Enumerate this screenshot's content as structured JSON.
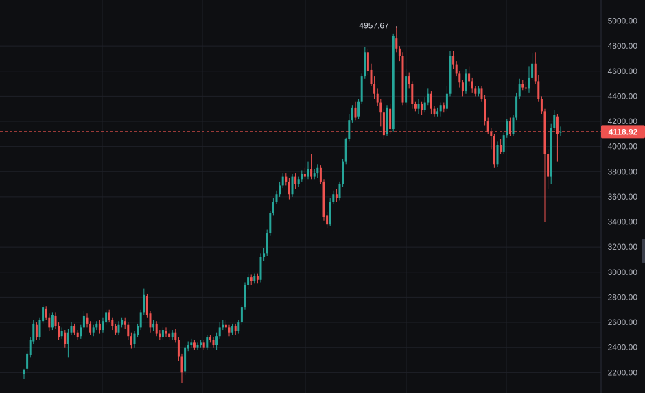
{
  "colors": {
    "background": "#0e0f12",
    "grid": "#1f2128",
    "up": "#26a69a",
    "down": "#ef5350",
    "axis_text": "#b2b5be",
    "price_line": "#ef5350"
  },
  "chart_data": {
    "type": "candlestick",
    "title": "",
    "xlabel": "",
    "ylabel": "",
    "ylim": [
      2140,
      5090
    ],
    "y_ticks": [
      "5000.00",
      "4800.00",
      "4600.00",
      "4400.00",
      "4200.00",
      "4000.00",
      "3800.00",
      "3600.00",
      "3400.00",
      "3200.00",
      "3000.00",
      "2800.00",
      "2600.00",
      "2400.00",
      "2200.00"
    ],
    "grid": true,
    "last_price": "4118.92",
    "high_annotation": "4957.67",
    "high_value": 4957.67,
    "candles": [
      [
        2190,
        2220,
        2150,
        2230
      ],
      [
        2230,
        2350,
        2210,
        2370
      ],
      [
        2340,
        2460,
        2320,
        2480
      ],
      [
        2450,
        2590,
        2430,
        2620
      ],
      [
        2580,
        2480,
        2460,
        2600
      ],
      [
        2480,
        2620,
        2460,
        2640
      ],
      [
        2610,
        2720,
        2590,
        2740
      ],
      [
        2710,
        2640,
        2620,
        2730
      ],
      [
        2640,
        2560,
        2530,
        2670
      ],
      [
        2560,
        2660,
        2540,
        2680
      ],
      [
        2650,
        2570,
        2550,
        2680
      ],
      [
        2570,
        2480,
        2460,
        2600
      ],
      [
        2490,
        2530,
        2470,
        2560
      ],
      [
        2520,
        2430,
        2400,
        2540
      ],
      [
        2430,
        2520,
        2320,
        2550
      ],
      [
        2520,
        2570,
        2500,
        2600
      ],
      [
        2570,
        2520,
        2500,
        2590
      ],
      [
        2520,
        2480,
        2460,
        2540
      ],
      [
        2490,
        2560,
        2470,
        2580
      ],
      [
        2560,
        2650,
        2540,
        2690
      ],
      [
        2640,
        2590,
        2560,
        2670
      ],
      [
        2590,
        2520,
        2500,
        2610
      ],
      [
        2520,
        2560,
        2490,
        2580
      ],
      [
        2560,
        2590,
        2540,
        2610
      ],
      [
        2590,
        2540,
        2510,
        2620
      ],
      [
        2540,
        2610,
        2520,
        2640
      ],
      [
        2600,
        2680,
        2580,
        2700
      ],
      [
        2680,
        2620,
        2600,
        2700
      ],
      [
        2620,
        2570,
        2540,
        2640
      ],
      [
        2570,
        2520,
        2500,
        2590
      ],
      [
        2520,
        2580,
        2500,
        2610
      ],
      [
        2580,
        2620,
        2560,
        2640
      ],
      [
        2610,
        2580,
        2550,
        2640
      ],
      [
        2580,
        2490,
        2460,
        2600
      ],
      [
        2490,
        2420,
        2390,
        2520
      ],
      [
        2430,
        2510,
        2400,
        2530
      ],
      [
        2500,
        2570,
        2480,
        2590
      ],
      [
        2560,
        2680,
        2540,
        2700
      ],
      [
        2680,
        2820,
        2660,
        2870
      ],
      [
        2810,
        2660,
        2640,
        2830
      ],
      [
        2670,
        2560,
        2520,
        2690
      ],
      [
        2560,
        2590,
        2530,
        2620
      ],
      [
        2590,
        2510,
        2490,
        2610
      ],
      [
        2510,
        2480,
        2460,
        2540
      ],
      [
        2480,
        2540,
        2460,
        2560
      ],
      [
        2530,
        2510,
        2480,
        2560
      ],
      [
        2510,
        2480,
        2460,
        2540
      ],
      [
        2480,
        2520,
        2460,
        2540
      ],
      [
        2520,
        2460,
        2440,
        2550
      ],
      [
        2460,
        2330,
        2290,
        2480
      ],
      [
        2330,
        2200,
        2120,
        2350
      ],
      [
        2210,
        2400,
        2180,
        2420
      ],
      [
        2390,
        2420,
        2370,
        2450
      ],
      [
        2420,
        2440,
        2400,
        2470
      ],
      [
        2440,
        2400,
        2380,
        2460
      ],
      [
        2400,
        2420,
        2380,
        2440
      ],
      [
        2420,
        2440,
        2400,
        2460
      ],
      [
        2440,
        2400,
        2380,
        2460
      ],
      [
        2400,
        2480,
        2380,
        2500
      ],
      [
        2480,
        2460,
        2440,
        2500
      ],
      [
        2460,
        2420,
        2400,
        2480
      ],
      [
        2420,
        2490,
        2380,
        2520
      ],
      [
        2490,
        2560,
        2470,
        2600
      ],
      [
        2560,
        2580,
        2540,
        2620
      ],
      [
        2580,
        2560,
        2540,
        2620
      ],
      [
        2560,
        2520,
        2490,
        2580
      ],
      [
        2520,
        2570,
        2500,
        2590
      ],
      [
        2570,
        2530,
        2500,
        2590
      ],
      [
        2530,
        2600,
        2510,
        2620
      ],
      [
        2600,
        2720,
        2580,
        2740
      ],
      [
        2720,
        2900,
        2700,
        2920
      ],
      [
        2900,
        2960,
        2860,
        2990
      ],
      [
        2960,
        2930,
        2900,
        2980
      ],
      [
        2930,
        2970,
        2910,
        2990
      ],
      [
        2970,
        2940,
        2910,
        2990
      ],
      [
        2940,
        3120,
        2920,
        3150
      ],
      [
        3120,
        3150,
        3090,
        3190
      ],
      [
        3150,
        3310,
        3130,
        3340
      ],
      [
        3310,
        3470,
        3290,
        3490
      ],
      [
        3470,
        3560,
        3450,
        3590
      ],
      [
        3560,
        3620,
        3540,
        3650
      ],
      [
        3620,
        3690,
        3600,
        3720
      ],
      [
        3690,
        3760,
        3670,
        3790
      ],
      [
        3760,
        3720,
        3690,
        3790
      ],
      [
        3720,
        3620,
        3580,
        3750
      ],
      [
        3620,
        3760,
        3600,
        3780
      ],
      [
        3760,
        3700,
        3660,
        3790
      ],
      [
        3700,
        3740,
        3680,
        3760
      ],
      [
        3740,
        3780,
        3720,
        3810
      ],
      [
        3780,
        3760,
        3740,
        3830
      ],
      [
        3760,
        3820,
        3740,
        3880
      ],
      [
        3820,
        3760,
        3740,
        3940
      ],
      [
        3760,
        3790,
        3740,
        3820
      ],
      [
        3790,
        3830,
        3750,
        3860
      ],
      [
        3830,
        3720,
        3700,
        3850
      ],
      [
        3720,
        3440,
        3410,
        3740
      ],
      [
        3450,
        3380,
        3350,
        3480
      ],
      [
        3380,
        3560,
        3370,
        3590
      ],
      [
        3560,
        3620,
        3540,
        3650
      ],
      [
        3620,
        3590,
        3560,
        3660
      ],
      [
        3590,
        3700,
        3570,
        3720
      ],
      [
        3700,
        3880,
        3680,
        3900
      ],
      [
        3880,
        4060,
        3860,
        4070
      ],
      [
        4060,
        4210,
        4040,
        4260
      ],
      [
        4210,
        4310,
        4190,
        4330
      ],
      [
        4310,
        4230,
        4210,
        4360
      ],
      [
        4240,
        4360,
        4220,
        4380
      ],
      [
        4360,
        4560,
        4340,
        4580
      ],
      [
        4560,
        4750,
        4540,
        4790
      ],
      [
        4750,
        4600,
        4570,
        4780
      ],
      [
        4610,
        4500,
        4480,
        4660
      ],
      [
        4500,
        4420,
        4380,
        4560
      ],
      [
        4420,
        4350,
        4320,
        4460
      ],
      [
        4350,
        4270,
        4160,
        4380
      ],
      [
        4270,
        4090,
        4060,
        4300
      ],
      [
        4100,
        4310,
        4080,
        4330
      ],
      [
        4300,
        4140,
        4100,
        4340
      ],
      [
        4140,
        4880,
        4120,
        4900
      ],
      [
        4860,
        4780,
        4750,
        4957.67
      ],
      [
        4780,
        4720,
        4680,
        4800
      ],
      [
        4720,
        4350,
        4330,
        4750
      ],
      [
        4350,
        4560,
        4330,
        4620
      ],
      [
        4560,
        4500,
        4460,
        4590
      ],
      [
        4500,
        4340,
        4300,
        4520
      ],
      [
        4340,
        4300,
        4280,
        4360
      ],
      [
        4300,
        4340,
        4260,
        4380
      ],
      [
        4340,
        4290,
        4250,
        4360
      ],
      [
        4290,
        4350,
        4270,
        4390
      ],
      [
        4350,
        4420,
        4330,
        4460
      ],
      [
        4420,
        4300,
        4260,
        4440
      ],
      [
        4300,
        4260,
        4240,
        4320
      ],
      [
        4260,
        4280,
        4240,
        4310
      ],
      [
        4280,
        4330,
        4240,
        4350
      ],
      [
        4330,
        4300,
        4270,
        4350
      ],
      [
        4300,
        4420,
        4280,
        4480
      ],
      [
        4420,
        4720,
        4400,
        4760
      ],
      [
        4720,
        4650,
        4620,
        4760
      ],
      [
        4650,
        4580,
        4560,
        4680
      ],
      [
        4580,
        4510,
        4470,
        4600
      ],
      [
        4510,
        4440,
        4400,
        4530
      ],
      [
        4440,
        4580,
        4420,
        4620
      ],
      [
        4580,
        4520,
        4480,
        4640
      ],
      [
        4520,
        4460,
        4430,
        4550
      ],
      [
        4460,
        4420,
        4400,
        4480
      ],
      [
        4420,
        4460,
        4400,
        4480
      ],
      [
        4460,
        4380,
        4360,
        4480
      ],
      [
        4380,
        4200,
        4170,
        4410
      ],
      [
        4200,
        4120,
        4100,
        4230
      ],
      [
        4120,
        4080,
        3980,
        4150
      ],
      [
        4080,
        3860,
        3830,
        4100
      ],
      [
        3860,
        4010,
        3840,
        4040
      ],
      [
        4010,
        3960,
        3940,
        4060
      ],
      [
        3960,
        4090,
        3940,
        4110
      ],
      [
        4090,
        4200,
        4070,
        4220
      ],
      [
        4200,
        4100,
        4080,
        4230
      ],
      [
        4100,
        4230,
        4080,
        4250
      ],
      [
        4230,
        4400,
        4210,
        4430
      ],
      [
        4400,
        4500,
        4380,
        4540
      ],
      [
        4500,
        4470,
        4450,
        4530
      ],
      [
        4470,
        4460,
        4440,
        4520
      ],
      [
        4460,
        4550,
        4430,
        4640
      ],
      [
        4550,
        4660,
        4530,
        4740
      ],
      [
        4660,
        4520,
        4500,
        4750
      ],
      [
        4520,
        4380,
        4360,
        4570
      ],
      [
        4380,
        4280,
        4260,
        4400
      ],
      [
        4280,
        3940,
        3400,
        4300
      ],
      [
        3940,
        3760,
        3660,
        3980
      ],
      [
        3760,
        4150,
        3700,
        4180
      ],
      [
        4150,
        4250,
        4130,
        4290
      ],
      [
        4240,
        4100,
        3880,
        4260
      ],
      [
        4110,
        4118.92,
        4080,
        4160
      ]
    ]
  }
}
